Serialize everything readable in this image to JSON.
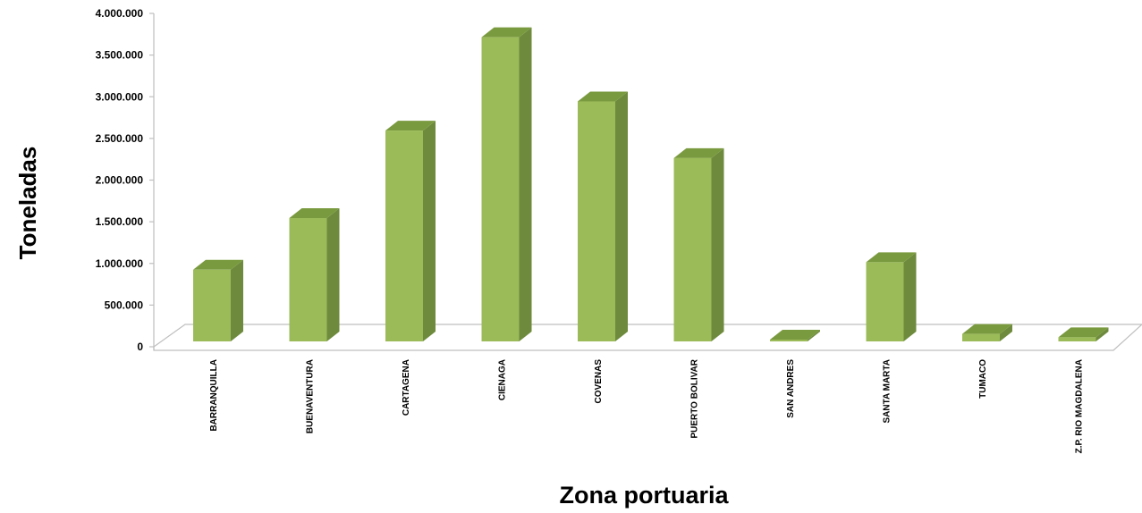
{
  "chart_data": {
    "type": "bar",
    "title": "",
    "xlabel": "Zona portuaria",
    "ylabel": "Toneladas",
    "categories": [
      "BARRANQUILLA",
      "BUENAVENTURA",
      "CARTAGENA",
      "CIENAGA",
      "COVENAS",
      "PUERTO BOLIVAR",
      "SAN ANDRES",
      "SANTA MARTA",
      "TUMACO",
      "Z.P. RIO MAGDALENA"
    ],
    "values": [
      860000,
      1480000,
      2530000,
      3650000,
      2880000,
      2200000,
      20000,
      950000,
      90000,
      50000
    ],
    "ylim": [
      0,
      4000000
    ],
    "yticks": [
      0,
      500000,
      1000000,
      1500000,
      2000000,
      2500000,
      3000000,
      3500000,
      4000000
    ],
    "ytick_labels": [
      "0",
      "500.000",
      "1.000.000",
      "1.500.000",
      "2.000.000",
      "2.500.000",
      "3.000.000",
      "3.500.000",
      "4.000.000"
    ],
    "grid": false,
    "legend": "none",
    "colors": {
      "bar_front": "#9BBB59",
      "bar_side": "#6E8B3D",
      "bar_top": "#7A9A3F",
      "floor": "#ffffff",
      "axis": "#BFBFBF"
    }
  }
}
